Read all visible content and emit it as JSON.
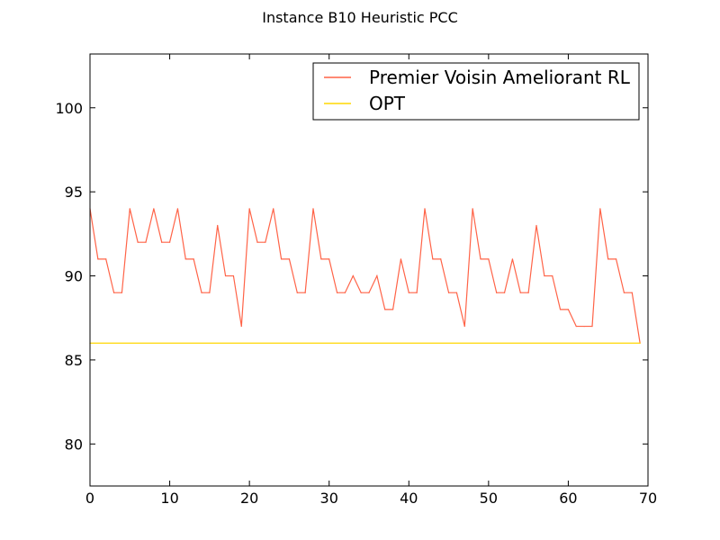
{
  "chart_data": {
    "type": "line",
    "title": "Instance B10 Heuristic PCC",
    "xlabel": "",
    "ylabel": "",
    "xlim": [
      0,
      70
    ],
    "ylim": [
      77.5,
      103.2
    ],
    "xticks": [
      0,
      10,
      20,
      30,
      40,
      50,
      60,
      70
    ],
    "yticks": [
      80,
      85,
      90,
      95,
      100
    ],
    "legend_position": "top-right",
    "grid": false,
    "series": [
      {
        "name": "Premier Voisin Ameliorant RL",
        "color": "#ff6347",
        "x": [
          0,
          1,
          2,
          3,
          4,
          5,
          6,
          7,
          8,
          9,
          10,
          11,
          12,
          13,
          14,
          15,
          16,
          17,
          18,
          19,
          20,
          21,
          22,
          23,
          24,
          25,
          26,
          27,
          28,
          29,
          30,
          31,
          32,
          33,
          34,
          35,
          36,
          37,
          38,
          39,
          40,
          41,
          42,
          43,
          44,
          45,
          46,
          47,
          48,
          49,
          50,
          51,
          52,
          53,
          54,
          55,
          56,
          57,
          58,
          59,
          60,
          61,
          62,
          63,
          64,
          65,
          66,
          67,
          68,
          69
        ],
        "values": [
          94,
          91,
          91,
          89,
          89,
          94,
          92,
          92,
          94,
          92,
          92,
          94,
          91,
          91,
          89,
          89,
          93,
          90,
          90,
          87,
          94,
          92,
          92,
          94,
          91,
          91,
          89,
          89,
          94,
          91,
          91,
          89,
          89,
          90,
          89,
          89,
          90,
          88,
          88,
          91,
          89,
          89,
          94,
          91,
          91,
          89,
          89,
          87,
          94,
          91,
          91,
          89,
          89,
          91,
          89,
          89,
          93,
          90,
          90,
          88,
          88,
          87,
          87,
          87,
          94,
          91,
          91,
          89,
          89,
          86
        ]
      },
      {
        "name": "OPT",
        "color": "#ffd700",
        "x": [
          0,
          69
        ],
        "values": [
          86,
          86
        ]
      }
    ]
  }
}
